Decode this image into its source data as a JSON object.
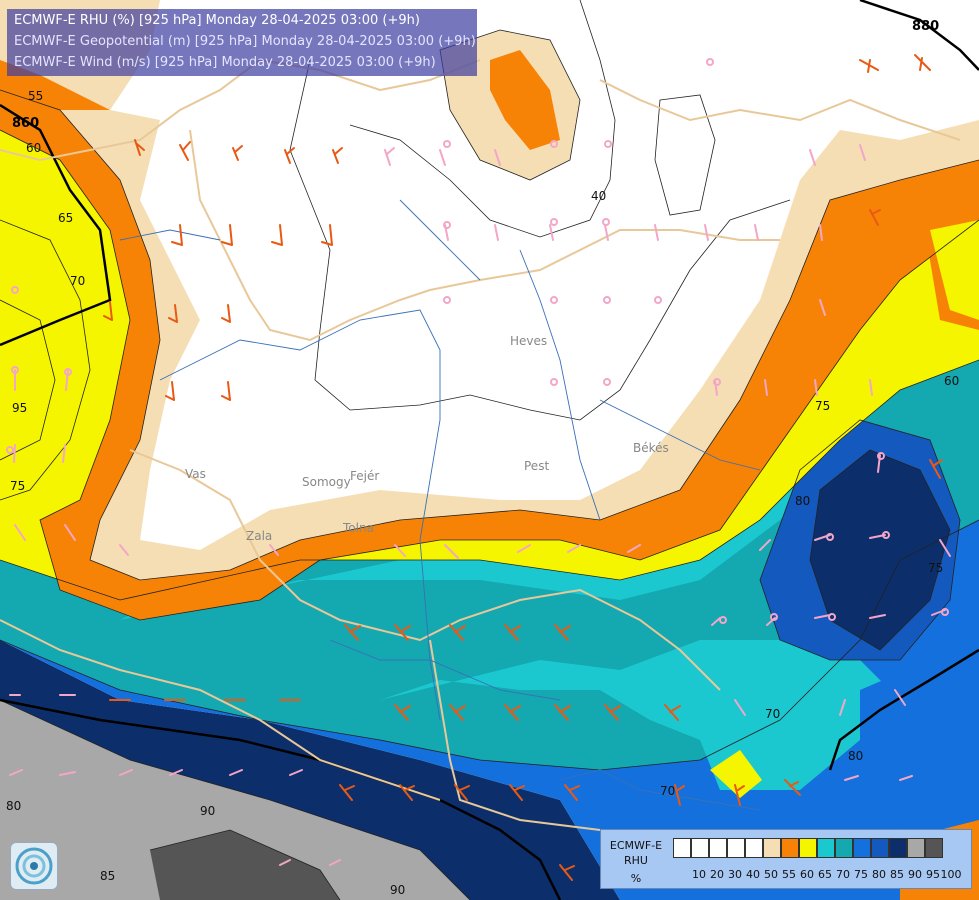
{
  "header": {
    "line1": "ECMWF-E RHU (%) [925 hPa] Monday 28-04-2025 03:00 (+9h)",
    "line2": "ECMWF-E Geopotential (m) [925 hPa] Monday 28-04-2025 03:00 (+9h)",
    "line3": "ECMWF-E Wind (m/s) [925 hPa] Monday 28-04-2025 03:00 (+9h)"
  },
  "legend": {
    "line1": "ECMWF-E",
    "line2": "RHU",
    "line3": "%",
    "colors": [
      "#ffffff",
      "#ffffff",
      "#ffffff",
      "#ffffff",
      "#ffffff",
      "#f5deb3",
      "#f78306",
      "#f5f500",
      "#1cc8d0",
      "#14a8b0",
      "#1470dc",
      "#1459bd",
      "#0c2f6c",
      "#a8a8a8",
      "#555555"
    ],
    "ticks": [
      "10",
      "20",
      "30",
      "40",
      "50",
      "55",
      "60",
      "65",
      "70",
      "75",
      "80",
      "85",
      "90",
      "95",
      "100"
    ]
  },
  "contour_labels": {
    "rhu": [
      "55",
      "60",
      "65",
      "70",
      "75",
      "95",
      "75",
      "80",
      "70",
      "90",
      "85",
      "90",
      "80",
      "60",
      "40",
      "75",
      "80",
      "70"
    ],
    "geopotential": [
      "860",
      "880"
    ]
  },
  "place_labels": [
    "Vas",
    "Zala",
    "Somogy",
    "Tolna",
    "Fejér",
    "Pest",
    "Heves",
    "Békés"
  ],
  "colors": {
    "wind_barb_warm": "#e85a14",
    "wind_barb_cool": "#f4a6c8",
    "border_line": "#e8c898",
    "river_line": "#3870b8"
  },
  "icons": {
    "logo": "ecmwf-logo-icon"
  }
}
